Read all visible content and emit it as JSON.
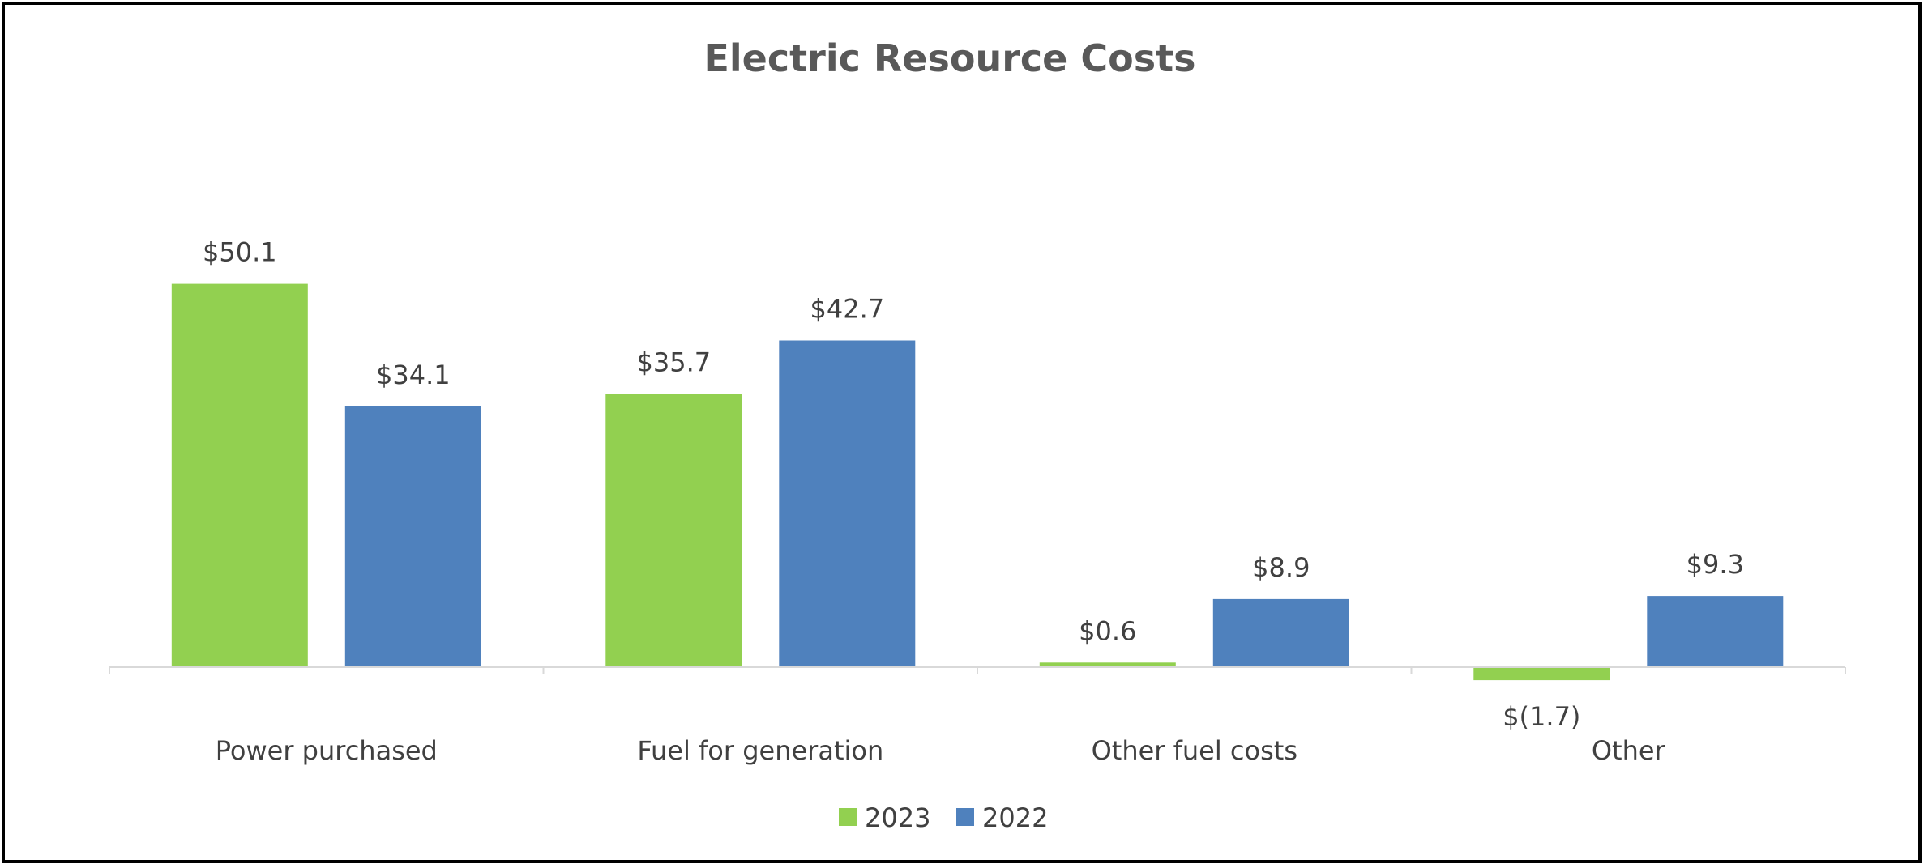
{
  "chart_data": {
    "type": "bar",
    "title": "Electric Resource Costs",
    "categories": [
      "Power purchased",
      "Fuel for generation",
      "Other fuel costs",
      "Other"
    ],
    "series": [
      {
        "name": "2023",
        "color": "#92D050",
        "values": [
          50.1,
          35.7,
          0.6,
          -1.7
        ],
        "labels": [
          "$50.1",
          "$35.7",
          "$0.6",
          "$(1.7)"
        ]
      },
      {
        "name": "2022",
        "color": "#4F81BD",
        "values": [
          34.1,
          42.7,
          8.9,
          9.3
        ],
        "labels": [
          "$34.1",
          "$42.7",
          "$8.9",
          "$9.3"
        ]
      }
    ],
    "xlabel": "",
    "ylabel": "",
    "grid": false,
    "legend": "bottom",
    "axis_color": "#D9D9D9"
  }
}
